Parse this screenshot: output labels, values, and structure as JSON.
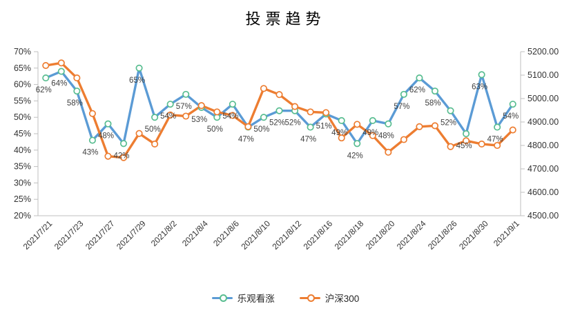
{
  "title": "投票趋势",
  "legend": {
    "items": [
      {
        "label": "乐观看涨",
        "line_color": "#5B9BD5",
        "marker_color": "#58BD90"
      },
      {
        "label": "沪深300",
        "line_color": "#ED7D31",
        "marker_color": "#ED7D31"
      }
    ]
  },
  "chart_data": {
    "type": "line",
    "title": "投票趋势",
    "grid": false,
    "legend_position": "bottom",
    "x": [
      "2021/7/21",
      "2021/7/22",
      "2021/7/23",
      "2021/7/26",
      "2021/7/27",
      "2021/7/28",
      "2021/7/29",
      "2021/7/30",
      "2021/8/2",
      "2021/8/3",
      "2021/8/4",
      "2021/8/5",
      "2021/8/6",
      "2021/8/9",
      "2021/8/10",
      "2021/8/11",
      "2021/8/12",
      "2021/8/13",
      "2021/8/16",
      "2021/8/17",
      "2021/8/18",
      "2021/8/19",
      "2021/8/20",
      "2021/8/23",
      "2021/8/24",
      "2021/8/25",
      "2021/8/26",
      "2021/8/27",
      "2021/8/30",
      "2021/8/31",
      "2021/9/1"
    ],
    "x_axis_labeled_ticks": [
      "2021/7/21",
      "2021/7/23",
      "2021/7/27",
      "2021/7/29",
      "2021/8/2",
      "2021/8/4",
      "2021/8/6",
      "2021/8/10",
      "2021/8/12",
      "2021/8/16",
      "2021/8/18",
      "2021/8/20",
      "2021/8/24",
      "2021/8/26",
      "2021/8/30",
      "2021/9/1"
    ],
    "series": [
      {
        "name": "乐观看涨",
        "axis": "left",
        "unit": "%",
        "line_color": "#5B9BD5",
        "marker_color": "#58BD90",
        "values": [
          62,
          64,
          58,
          43,
          48,
          42,
          65,
          50,
          54,
          57,
          53,
          50,
          54,
          47,
          50,
          52,
          52,
          47,
          51,
          49,
          42,
          49,
          48,
          57,
          62,
          58,
          52,
          45,
          63,
          47,
          54
        ],
        "data_labels": [
          "62%",
          "64%",
          "58%",
          "43%",
          "48%",
          "42%",
          "65%",
          "50%",
          "54%",
          "57%",
          "53%",
          "50%",
          "54%",
          "47%",
          "50%",
          "52%",
          "52%",
          "47%",
          "51%",
          "49%",
          "42%",
          "49%",
          "48%",
          "57%",
          "62%",
          "58%",
          "52%",
          "45%",
          "63%",
          "47%",
          "54%"
        ]
      },
      {
        "name": "沪深300",
        "axis": "right",
        "line_color": "#ED7D31",
        "marker_color": "#ED7D31",
        "values": [
          5141,
          5152,
          5088,
          4936,
          4754,
          4748,
          4851,
          4806,
          4930,
          4925,
          4970,
          4943,
          4928,
          4880,
          5043,
          5017,
          4966,
          4943,
          4940,
          4832,
          4890,
          4842,
          4771,
          4825,
          4880,
          4884,
          4795,
          4820,
          4806,
          4800,
          4866
        ],
        "data_labels": []
      }
    ],
    "left_axis": {
      "min": 20,
      "max": 70,
      "ticks": [
        "70%",
        "65%",
        "60%",
        "55%",
        "50%",
        "45%",
        "40%",
        "35%",
        "30%",
        "25%",
        "20%"
      ]
    },
    "right_axis": {
      "min": 4500,
      "max": 5200,
      "ticks": [
        "5200.00",
        "5100.00",
        "5000.00",
        "4900.00",
        "4800.00",
        "4700.00",
        "4600.00",
        "4500.00"
      ]
    },
    "colors": {
      "axis_line": "#BFBFBF",
      "axis_text": "#333333",
      "data_label_text": "#404040",
      "background": "#FFFFFF"
    }
  }
}
